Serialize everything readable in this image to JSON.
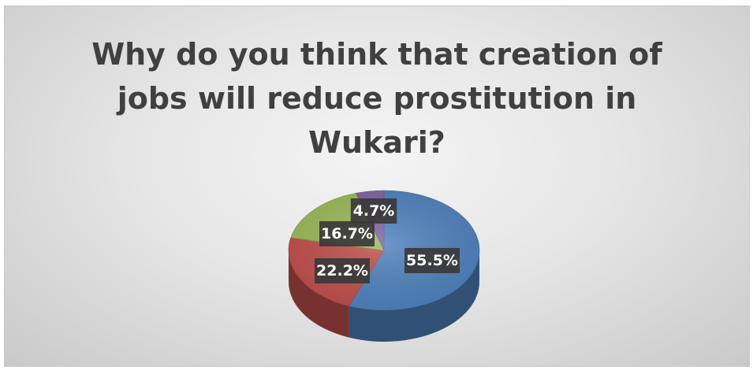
{
  "chart_data": {
    "type": "pie",
    "title": "Why do you think that creation of jobs will reduce prostitution in Wukari?",
    "title_lines": [
      "Why do you think that creation of",
      "jobs will reduce prostitution in",
      "Wukari?"
    ],
    "slices": [
      {
        "value": 55.5,
        "label": "55.5%",
        "color": "#4f81bd"
      },
      {
        "value": 22.2,
        "label": "22.2%",
        "color": "#c0504d"
      },
      {
        "value": 16.7,
        "label": "16.7%",
        "color": "#9bbb59"
      },
      {
        "value": 4.7,
        "label": "4.7%",
        "color": "#8064a2"
      }
    ],
    "legend": "none",
    "style": "3d"
  }
}
